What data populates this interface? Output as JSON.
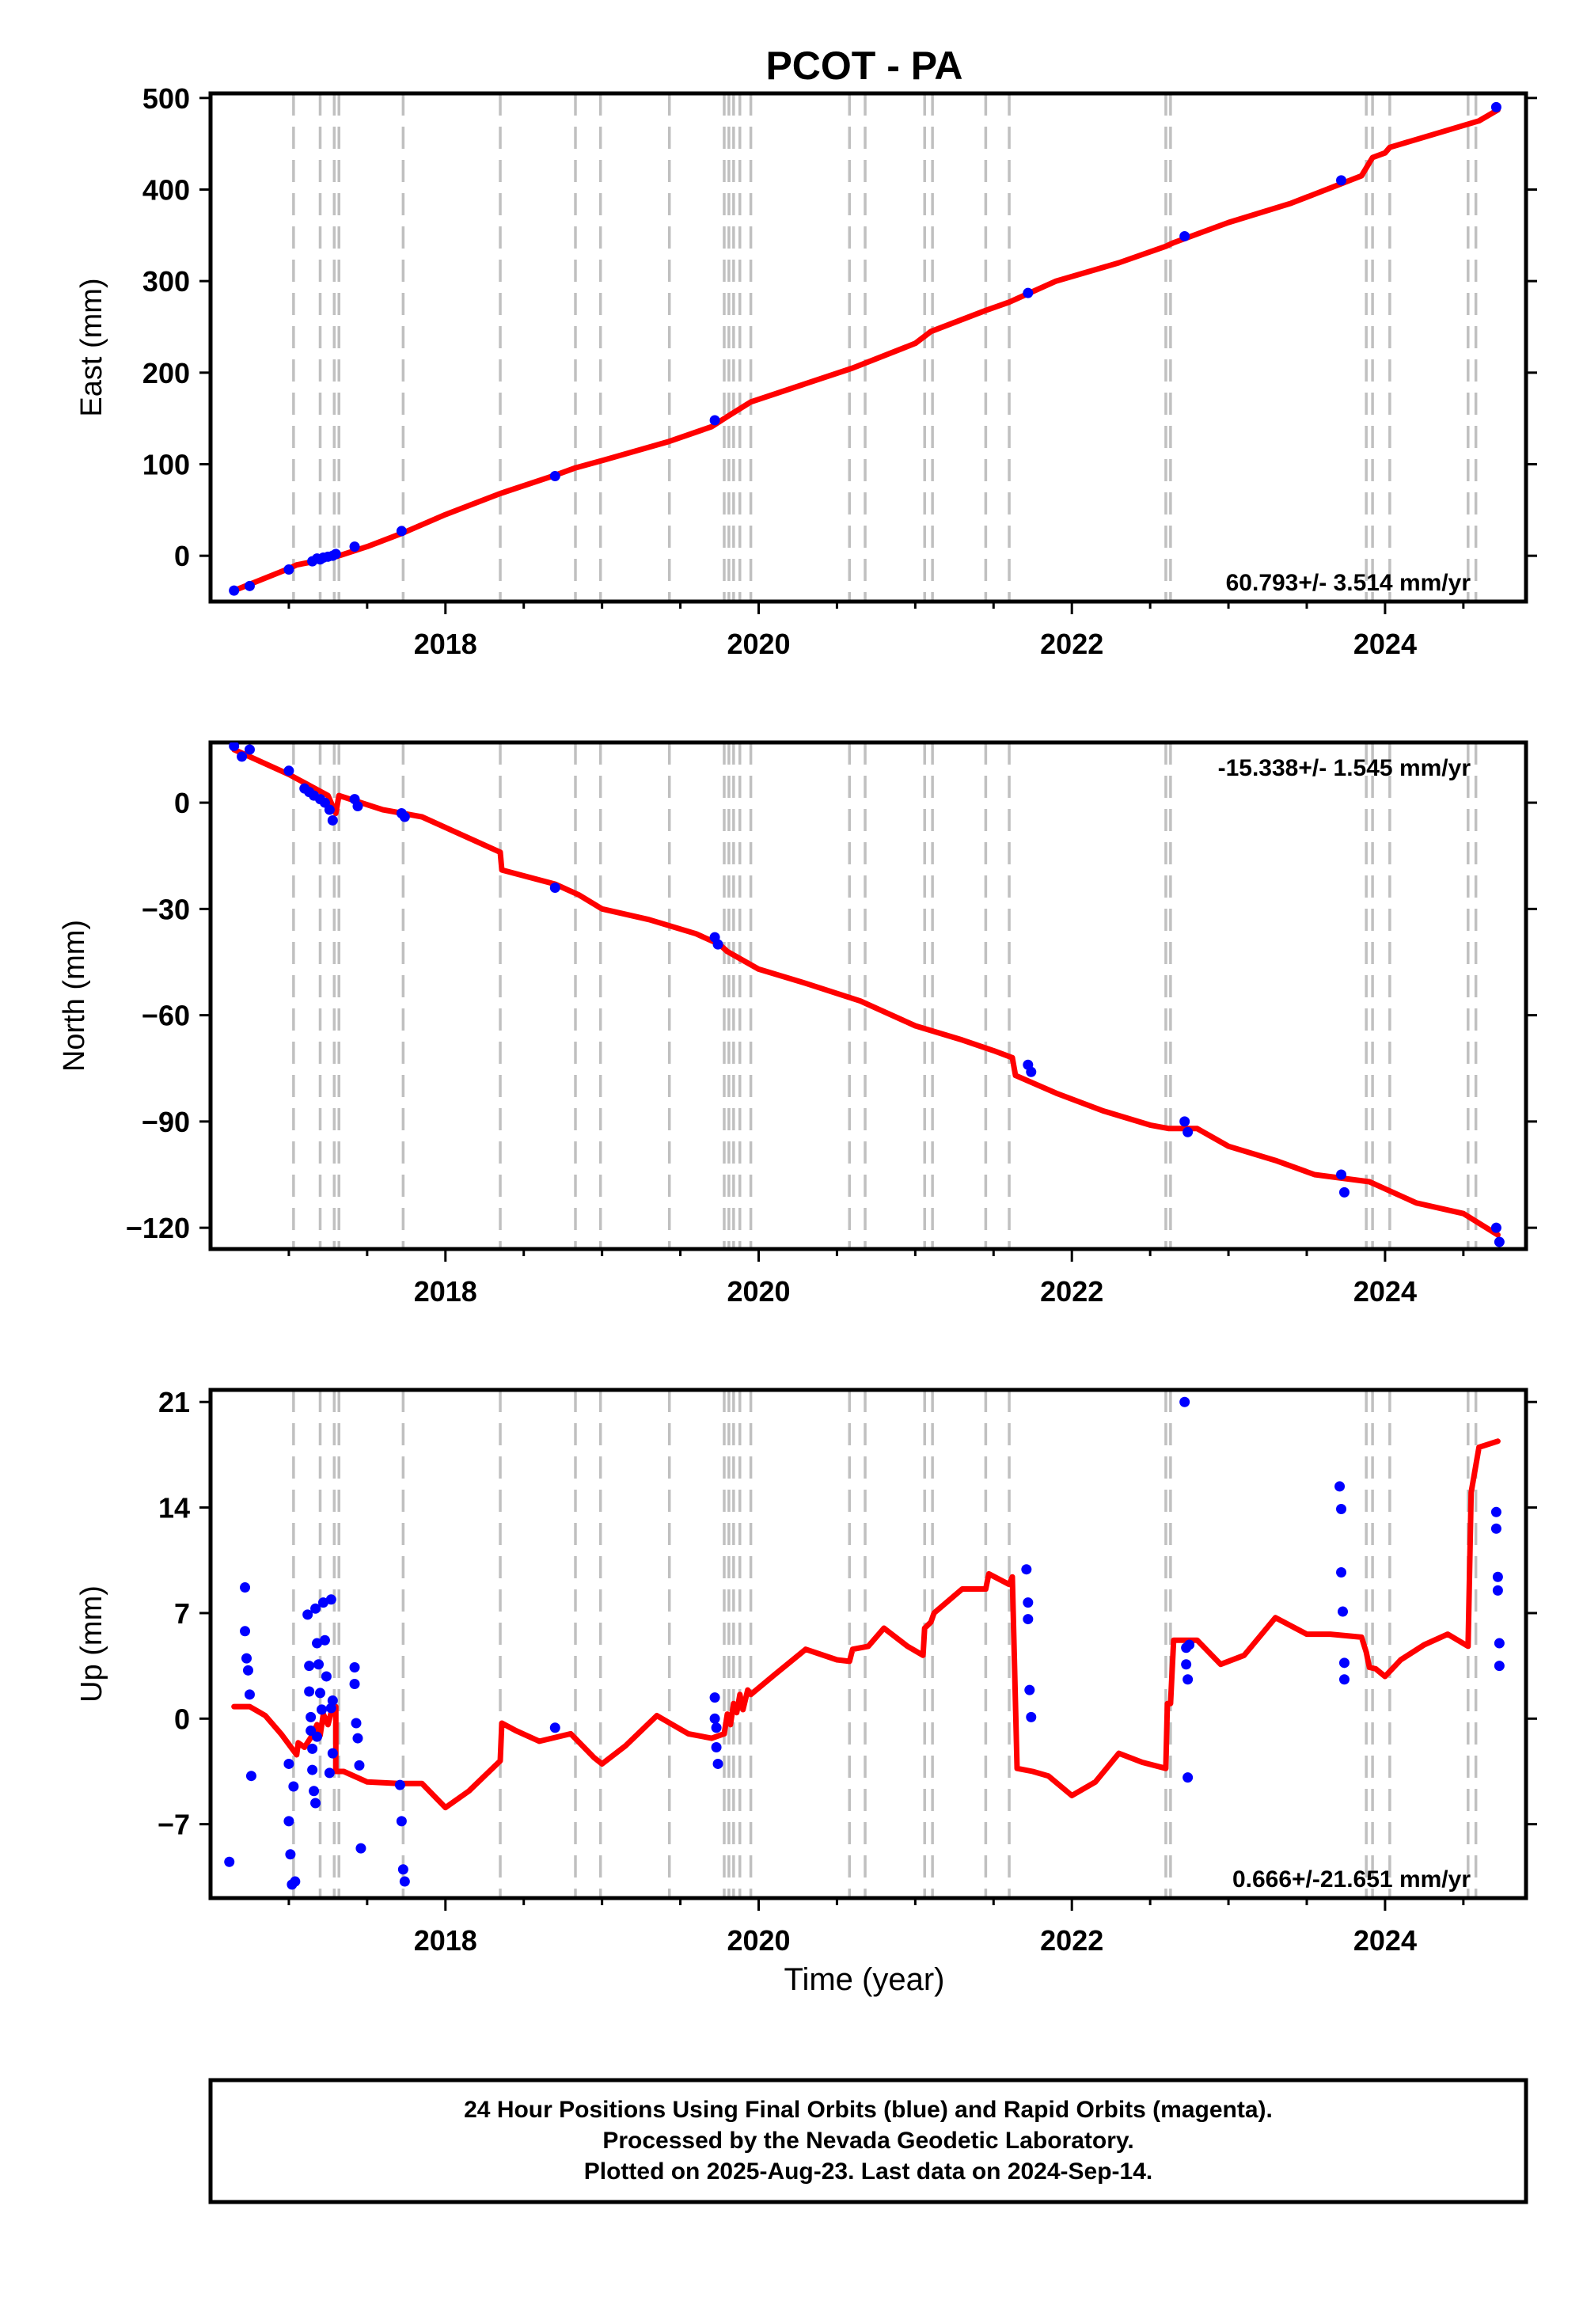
{
  "chart_data": {
    "type": "scatter",
    "title": "PCOT - PA",
    "xlabel": "Time (year)",
    "xlim": [
      2016.5,
      2024.9
    ],
    "x_ticks": [
      2018,
      2020,
      2022,
      2024
    ],
    "x_tick_labels": [
      "2018",
      "2020",
      "2022",
      "2024"
    ],
    "event_lines": [
      2017.03,
      2017.2,
      2017.29,
      2017.32,
      2017.73,
      2018.35,
      2018.83,
      2018.99,
      2019.43,
      2019.78,
      2019.81,
      2019.84,
      2019.88,
      2019.95,
      2020.58,
      2020.68,
      2021.06,
      2021.11,
      2021.45,
      2021.6,
      2022.6,
      2022.63,
      2023.88,
      2023.92,
      2024.03,
      2024.53,
      2024.58
    ],
    "series_legend_note": "24 Hour Positions Using Final Orbits (blue) and Rapid Orbits (magenta).",
    "panels": [
      {
        "key": "east",
        "ylabel": "East (mm)",
        "ylim": [
          -50,
          505
        ],
        "y_ticks": [
          0,
          100,
          200,
          300,
          400,
          500
        ],
        "y_tick_labels": [
          "0",
          "100",
          "200",
          "300",
          "400",
          "500"
        ],
        "rate_label": "60.793+/- 3.514 mm/yr",
        "rate_position": "bottom-right",
        "points_x": [
          2016.65,
          2016.75,
          2017.0,
          2017.15,
          2017.18,
          2017.2,
          2017.22,
          2017.25,
          2017.28,
          2017.3,
          2017.42,
          2017.72,
          2018.7,
          2019.72,
          2021.72,
          2022.72,
          2023.72,
          2024.71
        ],
        "points_y": [
          -38,
          -33,
          -15,
          -6,
          -3,
          -4,
          -2,
          -1,
          0,
          2,
          10,
          27,
          87,
          148,
          287,
          349,
          410,
          490
        ],
        "fit_x": [
          2016.65,
          2017.0,
          2017.05,
          2017.2,
          2017.3,
          2017.32,
          2017.5,
          2017.73,
          2018.0,
          2018.35,
          2018.7,
          2018.83,
          2019.0,
          2019.43,
          2019.7,
          2019.8,
          2019.95,
          2020.3,
          2020.6,
          2021.0,
          2021.1,
          2021.45,
          2021.6,
          2021.9,
          2022.3,
          2022.6,
          2022.65,
          2023.0,
          2023.4,
          2023.85,
          2023.92,
          2024.0,
          2024.03,
          2024.6,
          2024.72
        ],
        "fit_y": [
          -38,
          -14,
          -10,
          -5,
          -1,
          0,
          10,
          25,
          45,
          68,
          88,
          96,
          104,
          125,
          141,
          152,
          168,
          188,
          205,
          232,
          245,
          268,
          277,
          300,
          320,
          338,
          342,
          364,
          385,
          415,
          435,
          440,
          446,
          475,
          487
        ]
      },
      {
        "key": "north",
        "ylabel": "North (mm)",
        "ylim": [
          -126,
          17
        ],
        "y_ticks": [
          0,
          -30,
          -60,
          -90,
          -120
        ],
        "y_tick_labels": [
          "0",
          "−30",
          "−60",
          "−90",
          "−120"
        ],
        "rate_label": "-15.338+/- 1.545 mm/yr",
        "rate_position": "top-right",
        "points_x": [
          2016.65,
          2016.7,
          2016.75,
          2017.0,
          2017.1,
          2017.13,
          2017.16,
          2017.2,
          2017.23,
          2017.26,
          2017.28,
          2017.42,
          2017.44,
          2017.72,
          2017.74,
          2018.7,
          2019.72,
          2019.74,
          2021.72,
          2021.74,
          2022.72,
          2022.74,
          2023.72,
          2023.74,
          2024.71,
          2024.73
        ],
        "points_y": [
          16,
          13,
          15,
          9,
          4,
          3,
          2,
          1,
          0,
          -2,
          -5,
          1,
          -1,
          -3,
          -4,
          -24,
          -38,
          -40,
          -74,
          -76,
          -90,
          -93,
          -105,
          -110,
          -120,
          -124
        ],
        "fit_x": [
          2016.65,
          2017.0,
          2017.25,
          2017.3,
          2017.32,
          2017.6,
          2017.85,
          2018.0,
          2018.2,
          2018.35,
          2018.36,
          2018.7,
          2018.85,
          2019.0,
          2019.3,
          2019.6,
          2019.75,
          2019.8,
          2020.0,
          2020.3,
          2020.65,
          2021.0,
          2021.3,
          2021.5,
          2021.62,
          2021.64,
          2021.9,
          2022.2,
          2022.5,
          2022.62,
          2022.8,
          2023.0,
          2023.3,
          2023.55,
          2023.9,
          2023.95,
          2024.2,
          2024.5,
          2024.72
        ],
        "fit_y": [
          15,
          8,
          2,
          -3,
          2,
          -2,
          -4,
          -7,
          -11,
          -14,
          -19,
          -23,
          -26,
          -30,
          -33,
          -37,
          -40,
          -42,
          -47,
          -51,
          -56,
          -63,
          -67,
          -70,
          -72,
          -77,
          -82,
          -87,
          -91,
          -92,
          -92,
          -97,
          -101,
          -105,
          -107,
          -108,
          -113,
          -116,
          -122
        ]
      },
      {
        "key": "up",
        "ylabel": "Up (mm)",
        "ylim": [
          -11.9,
          21.8
        ],
        "y_ticks": [
          21,
          14,
          7,
          0,
          -7
        ],
        "y_tick_labels": [
          "21",
          "14",
          "7",
          "0",
          "−7"
        ],
        "rate_label": "0.666+/-21.651 mm/yr",
        "rate_position": "bottom-right",
        "points_x": [
          2016.62,
          2016.72,
          2016.72,
          2016.73,
          2016.74,
          2016.75,
          2016.76,
          2017.0,
          2017.0,
          2017.01,
          2017.02,
          2017.03,
          2017.04,
          2017.12,
          2017.13,
          2017.13,
          2017.14,
          2017.14,
          2017.15,
          2017.15,
          2017.16,
          2017.17,
          2017.17,
          2017.18,
          2017.18,
          2017.19,
          2017.2,
          2017.21,
          2017.22,
          2017.23,
          2017.24,
          2017.26,
          2017.27,
          2017.27,
          2017.28,
          2017.28,
          2017.42,
          2017.42,
          2017.43,
          2017.44,
          2017.45,
          2017.46,
          2017.71,
          2017.72,
          2017.73,
          2017.74,
          2018.7,
          2019.72,
          2019.72,
          2019.73,
          2019.73,
          2019.74,
          2021.71,
          2021.72,
          2021.72,
          2021.73,
          2021.74,
          2022.72,
          2022.73,
          2022.73,
          2022.74,
          2022.74,
          2022.75,
          2023.71,
          2023.72,
          2023.72,
          2023.73,
          2023.74,
          2023.74,
          2024.71,
          2024.71,
          2024.72,
          2024.72,
          2024.73,
          2024.73
        ],
        "points_y": [
          -9.5,
          8.7,
          5.8,
          4.0,
          3.2,
          1.6,
          -3.8,
          -3.0,
          -6.8,
          -9.0,
          -11.0,
          -4.5,
          -10.8,
          6.9,
          3.5,
          1.8,
          0.1,
          -0.8,
          -2.0,
          -3.4,
          -4.8,
          -5.6,
          7.3,
          5.0,
          -1.2,
          3.6,
          1.7,
          0.6,
          7.7,
          5.2,
          2.8,
          -3.6,
          7.9,
          0.7,
          -2.3,
          1.2,
          3.4,
          2.3,
          -0.3,
          -1.3,
          -3.1,
          -8.6,
          -4.4,
          -6.8,
          -10.0,
          -10.8,
          -0.6,
          1.4,
          0.0,
          -0.6,
          -1.9,
          -3.0,
          9.9,
          7.7,
          6.6,
          1.9,
          0.1,
          21.0,
          4.7,
          3.6,
          2.6,
          -3.9,
          4.9,
          15.4,
          13.9,
          9.7,
          7.1,
          3.7,
          2.6,
          13.7,
          12.6,
          9.4,
          8.5,
          5.0,
          3.5
        ]
      }
    ],
    "fit_up": {
      "x": [
        2016.65,
        2016.75,
        2016.85,
        2016.95,
        2017.05,
        2017.06,
        2017.1,
        2017.15,
        2017.18,
        2017.2,
        2017.22,
        2017.25,
        2017.28,
        2017.3,
        2017.3,
        2017.35,
        2017.5,
        2017.7,
        2017.85,
        2018.0,
        2018.15,
        2018.35,
        2018.36,
        2018.45,
        2018.6,
        2018.8,
        2018.95,
        2019.0,
        2019.15,
        2019.35,
        2019.55,
        2019.7,
        2019.78,
        2019.8,
        2019.82,
        2019.84,
        2019.86,
        2019.88,
        2019.9,
        2019.93,
        2019.95,
        2020.1,
        2020.3,
        2020.5,
        2020.58,
        2020.6,
        2020.7,
        2020.8,
        2020.95,
        2021.05,
        2021.06,
        2021.1,
        2021.12,
        2021.3,
        2021.45,
        2021.47,
        2021.6,
        2021.62,
        2021.65,
        2021.75,
        2021.85,
        2022.0,
        2022.15,
        2022.3,
        2022.45,
        2022.6,
        2022.61,
        2022.63,
        2022.65,
        2022.8,
        2022.95,
        2023.1,
        2023.3,
        2023.5,
        2023.65,
        2023.85,
        2023.88,
        2023.9,
        2023.94,
        2024.0,
        2024.1,
        2024.25,
        2024.4,
        2024.53,
        2024.55,
        2024.6,
        2024.72
      ],
      "y": [
        0.8,
        0.8,
        0.2,
        -1.0,
        -2.4,
        -1.6,
        -1.9,
        -1.1,
        -0.4,
        -1.1,
        0.3,
        -0.4,
        0.8,
        0.8,
        -3.5,
        -3.5,
        -4.2,
        -4.3,
        -4.3,
        -5.9,
        -4.8,
        -2.8,
        -0.3,
        -0.8,
        -1.5,
        -1.0,
        -2.6,
        -3.0,
        -1.8,
        0.2,
        -1.0,
        -1.3,
        -1.0,
        0.3,
        -0.4,
        1.0,
        0.4,
        1.6,
        0.6,
        1.9,
        1.6,
        2.9,
        4.6,
        3.9,
        3.8,
        4.6,
        4.8,
        6.0,
        4.8,
        4.2,
        6.0,
        6.4,
        7.0,
        8.6,
        8.6,
        9.6,
        8.9,
        9.4,
        -3.3,
        -3.5,
        -3.8,
        -5.1,
        -4.2,
        -2.3,
        -2.9,
        -3.3,
        1.0,
        1.0,
        5.2,
        5.2,
        3.6,
        4.2,
        6.7,
        5.6,
        5.6,
        5.4,
        4.4,
        3.4,
        3.3,
        2.8,
        3.9,
        4.9,
        5.6,
        4.8,
        15.0,
        18.0,
        18.4
      ]
    },
    "footer_lines": [
      "24 Hour Positions Using Final Orbits (blue) and Rapid Orbits (magenta).",
      "Processed by the Nevada Geodetic Laboratory.",
      "Plotted on 2025-Aug-23. Last data on 2024-Sep-14."
    ],
    "colors": {
      "points": "#0000ff",
      "fit": "#ff0000",
      "event_lines": "#c0c0c0",
      "frame": "#000000"
    }
  }
}
